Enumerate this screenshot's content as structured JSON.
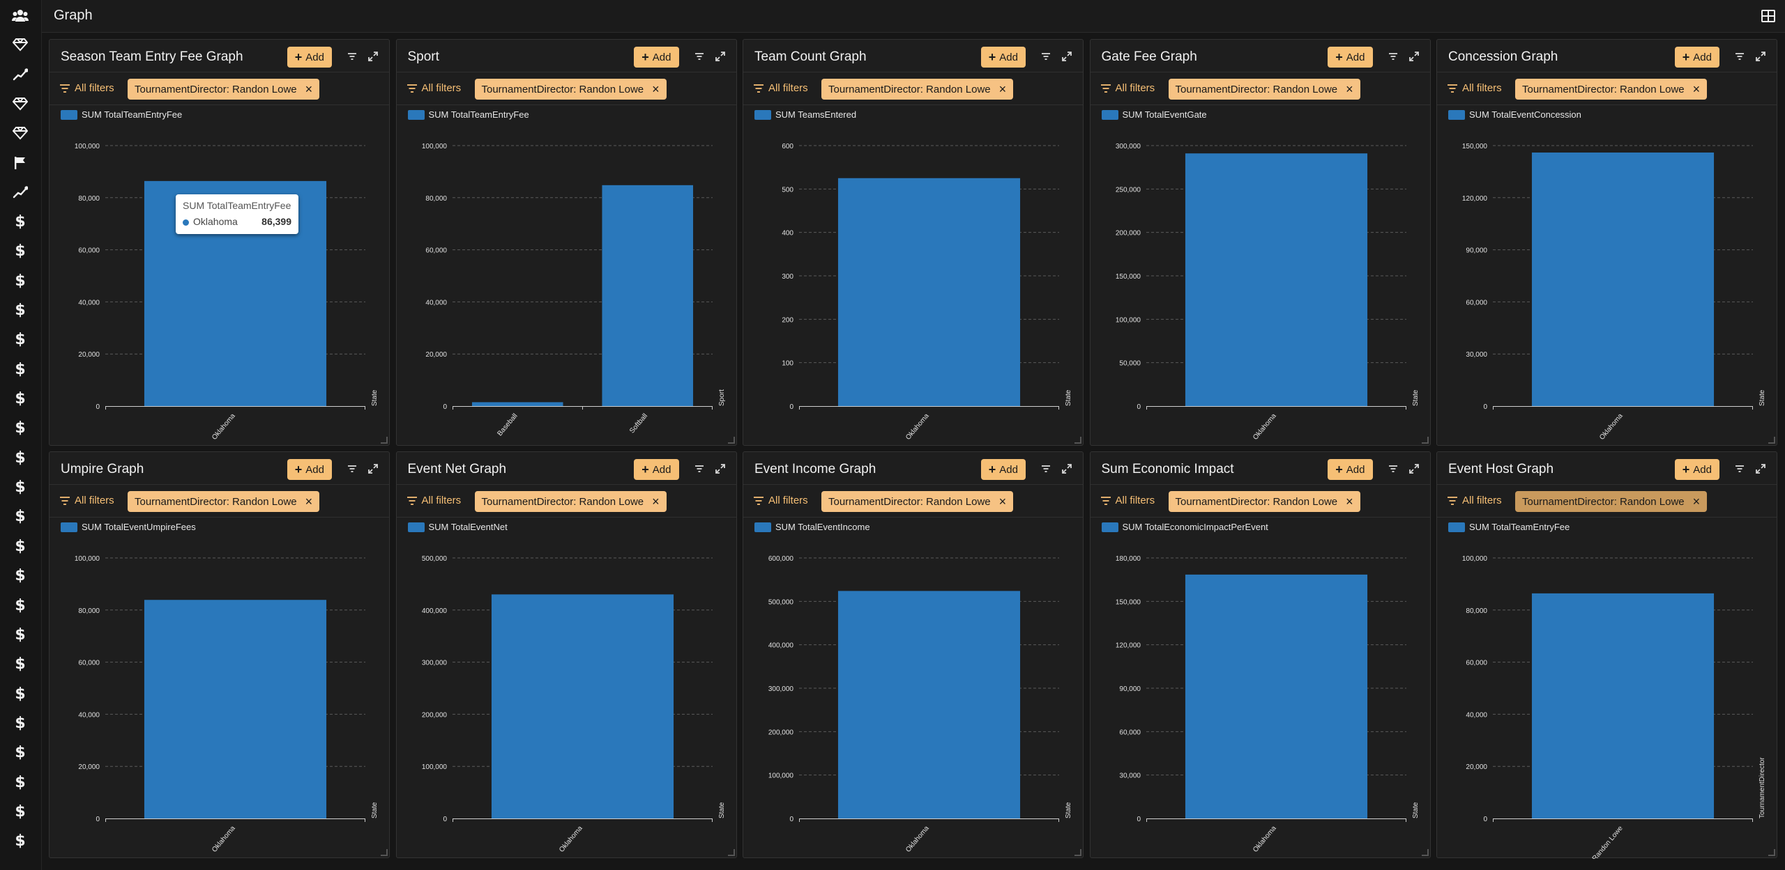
{
  "header": {
    "title": "Graph"
  },
  "sidebar": {
    "icons": [
      "users-icon",
      "diamond-icon",
      "chart-line-icon",
      "diamond-icon",
      "diamond-icon",
      "flag-icon",
      "chart-line-icon",
      "dollar-icon",
      "dollar-icon",
      "dollar-icon",
      "dollar-icon",
      "dollar-icon",
      "dollar-icon",
      "dollar-icon",
      "dollar-icon",
      "dollar-icon",
      "dollar-icon",
      "dollar-icon",
      "dollar-icon",
      "dollar-icon",
      "dollar-icon",
      "dollar-icon",
      "dollar-icon",
      "dollar-icon",
      "dollar-icon",
      "dollar-icon",
      "dollar-icon",
      "dollar-icon",
      "dollar-icon"
    ]
  },
  "common": {
    "add_label": "Add",
    "all_filters_label": "All filters"
  },
  "colors": {
    "accent": "#f6bf75",
    "bar": "#2a78bb",
    "background": "#161616",
    "card": "#1e1e1e"
  },
  "cards": [
    {
      "title": "Season Team Entry Fee Graph",
      "filter": "TournamentDirector: Randon Lowe",
      "legend": "SUM TotalTeamEntryFee",
      "xaxis_title": "State",
      "ticks": [
        "0",
        "20,000",
        "40,000",
        "60,000",
        "80,000",
        "100,000"
      ],
      "tooltip": {
        "title": "SUM TotalTeamEntryFee",
        "label": "Oklahoma",
        "value": "86,399"
      }
    },
    {
      "title": "Sport",
      "filter": "TournamentDirector: Randon Lowe",
      "legend": "SUM TotalTeamEntryFee",
      "xaxis_title": "Sport",
      "ticks": [
        "0",
        "20,000",
        "40,000",
        "60,000",
        "80,000",
        "100,000"
      ]
    },
    {
      "title": "Team Count Graph",
      "filter": "TournamentDirector: Randon Lowe",
      "legend": "SUM TeamsEntered",
      "xaxis_title": "State",
      "ticks": [
        "0",
        "100",
        "200",
        "300",
        "400",
        "500",
        "600"
      ]
    },
    {
      "title": "Gate Fee Graph",
      "filter": "TournamentDirector: Randon Lowe",
      "legend": "SUM TotalEventGate",
      "xaxis_title": "State",
      "ticks": [
        "0",
        "50,000",
        "100,000",
        "150,000",
        "200,000",
        "250,000",
        "300,000"
      ]
    },
    {
      "title": "Concession Graph",
      "filter": "TournamentDirector: Randon Lowe",
      "legend": "SUM TotalEventConcession",
      "xaxis_title": "State",
      "ticks": [
        "0",
        "30,000",
        "60,000",
        "90,000",
        "120,000",
        "150,000"
      ]
    },
    {
      "title": "Umpire Graph",
      "filter": "TournamentDirector: Randon Lowe",
      "legend": "SUM TotalEventUmpireFees",
      "xaxis_title": "State",
      "ticks": [
        "0",
        "20,000",
        "40,000",
        "60,000",
        "80,000",
        "100,000"
      ]
    },
    {
      "title": "Event Net Graph",
      "filter": "TournamentDirector: Randon Lowe",
      "legend": "SUM TotalEventNet",
      "xaxis_title": "State",
      "ticks": [
        "0",
        "100,000",
        "200,000",
        "300,000",
        "400,000",
        "500,000"
      ]
    },
    {
      "title": "Event Income Graph",
      "filter": "TournamentDirector: Randon Lowe",
      "legend": "SUM TotalEventIncome",
      "xaxis_title": "State",
      "ticks": [
        "0",
        "100,000",
        "200,000",
        "300,000",
        "400,000",
        "500,000",
        "600,000"
      ]
    },
    {
      "title": "Sum Economic Impact",
      "filter": "TournamentDirector: Randon Lowe",
      "legend": "SUM TotalEconomicImpactPerEvent",
      "xaxis_title": "State",
      "ticks": [
        "0",
        "30,000",
        "60,000",
        "90,000",
        "120,000",
        "150,000",
        "180,000"
      ]
    },
    {
      "title": "Event Host Graph",
      "filter": "TournamentDirector: Randon Lowe",
      "legend": "SUM TotalTeamEntryFee",
      "xaxis_title": "TournamentDirector",
      "ticks": [
        "0",
        "20,000",
        "40,000",
        "60,000",
        "80,000",
        "100,000"
      ]
    }
  ],
  "chart_data": [
    {
      "type": "bar",
      "title": "Season Team Entry Fee Graph",
      "xlabel": "State",
      "ylabel": "",
      "categories": [
        "Oklahoma"
      ],
      "series": [
        {
          "name": "SUM TotalTeamEntryFee",
          "values": [
            86399
          ]
        }
      ],
      "ylim": [
        0,
        100000
      ],
      "grid": true,
      "legend": "top-left"
    },
    {
      "type": "bar",
      "title": "Sport",
      "xlabel": "Sport",
      "ylabel": "",
      "categories": [
        "Baseball",
        "Softball"
      ],
      "series": [
        {
          "name": "SUM TotalTeamEntryFee",
          "values": [
            1500,
            84800
          ]
        }
      ],
      "ylim": [
        0,
        100000
      ],
      "grid": true,
      "legend": "top-left"
    },
    {
      "type": "bar",
      "title": "Team Count Graph",
      "xlabel": "State",
      "ylabel": "",
      "categories": [
        "Oklahoma"
      ],
      "series": [
        {
          "name": "SUM TeamsEntered",
          "values": [
            525
          ]
        }
      ],
      "ylim": [
        0,
        600
      ],
      "grid": true,
      "legend": "top-left"
    },
    {
      "type": "bar",
      "title": "Gate Fee Graph",
      "xlabel": "State",
      "ylabel": "",
      "categories": [
        "Oklahoma"
      ],
      "series": [
        {
          "name": "SUM TotalEventGate",
          "values": [
            291000
          ]
        }
      ],
      "ylim": [
        0,
        300000
      ],
      "grid": true,
      "legend": "top-left"
    },
    {
      "type": "bar",
      "title": "Concession Graph",
      "xlabel": "State",
      "ylabel": "",
      "categories": [
        "Oklahoma"
      ],
      "series": [
        {
          "name": "SUM TotalEventConcession",
          "values": [
            146000
          ]
        }
      ],
      "ylim": [
        0,
        150000
      ],
      "grid": true,
      "legend": "top-left"
    },
    {
      "type": "bar",
      "title": "Umpire Graph",
      "xlabel": "State",
      "ylabel": "",
      "categories": [
        "Oklahoma"
      ],
      "series": [
        {
          "name": "SUM TotalEventUmpireFees",
          "values": [
            83900
          ]
        }
      ],
      "ylim": [
        0,
        100000
      ],
      "grid": true,
      "legend": "top-left"
    },
    {
      "type": "bar",
      "title": "Event Net Graph",
      "xlabel": "State",
      "ylabel": "",
      "categories": [
        "Oklahoma"
      ],
      "series": [
        {
          "name": "SUM TotalEventNet",
          "values": [
            430000
          ]
        }
      ],
      "ylim": [
        0,
        500000
      ],
      "grid": true,
      "legend": "top-left"
    },
    {
      "type": "bar",
      "title": "Event Income Graph",
      "xlabel": "State",
      "ylabel": "",
      "categories": [
        "Oklahoma"
      ],
      "series": [
        {
          "name": "SUM TotalEventIncome",
          "values": [
            524000
          ]
        }
      ],
      "ylim": [
        0,
        600000
      ],
      "grid": true,
      "legend": "top-left"
    },
    {
      "type": "bar",
      "title": "Sum Economic Impact",
      "xlabel": "State",
      "ylabel": "",
      "categories": [
        "Oklahoma"
      ],
      "series": [
        {
          "name": "SUM TotalEconomicImpactPerEvent",
          "values": [
            168500
          ]
        }
      ],
      "ylim": [
        0,
        180000
      ],
      "grid": true,
      "legend": "top-left"
    },
    {
      "type": "bar",
      "title": "Event Host Graph",
      "xlabel": "TournamentDirector",
      "ylabel": "",
      "categories": [
        "Randon Lowe"
      ],
      "series": [
        {
          "name": "SUM TotalTeamEntryFee",
          "values": [
            86399
          ]
        }
      ],
      "ylim": [
        0,
        100000
      ],
      "grid": true,
      "legend": "top-left"
    }
  ]
}
